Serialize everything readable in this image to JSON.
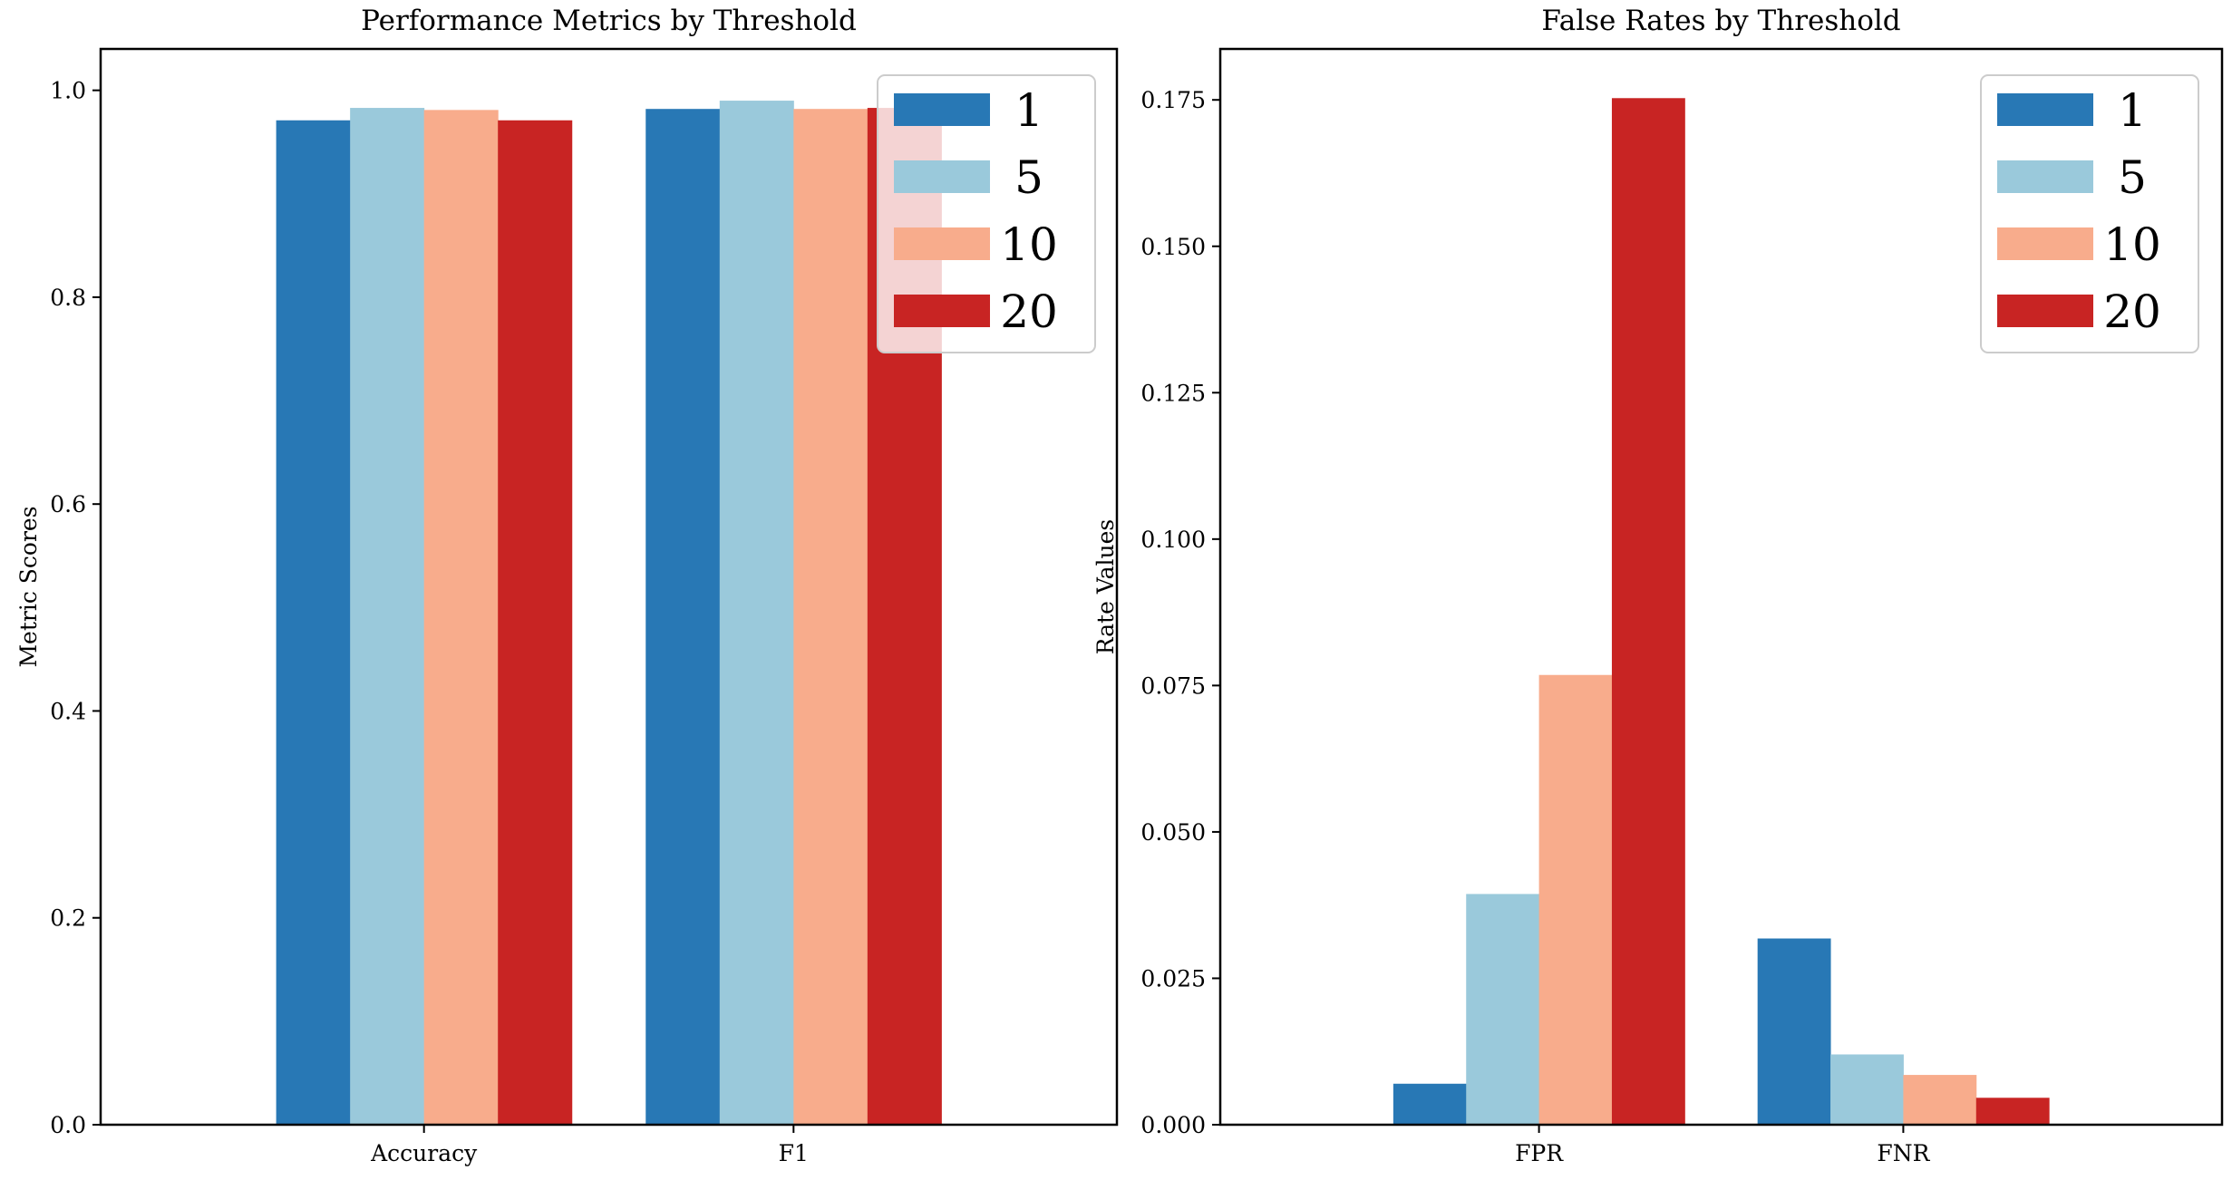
{
  "chart_data": [
    {
      "type": "bar",
      "title": "Performance Metrics by Threshold",
      "xlabel": "",
      "ylabel": "Metric Scores",
      "categories": [
        "Accuracy",
        "F1"
      ],
      "ylim": [
        0,
        1.04
      ],
      "yticks": [
        0.0,
        0.2,
        0.4,
        0.6,
        0.8,
        1.0
      ],
      "ytick_labels": [
        "0.0",
        "0.2",
        "0.4",
        "0.6",
        "0.8",
        "1.0"
      ],
      "legend_position": "top-right",
      "series": [
        {
          "name": "1",
          "color": "#2878b5",
          "values": [
            0.971,
            0.982
          ]
        },
        {
          "name": "5",
          "color": "#9ac9db",
          "values": [
            0.983,
            0.99
          ]
        },
        {
          "name": "10",
          "color": "#f8ac8c",
          "values": [
            0.981,
            0.982
          ]
        },
        {
          "name": "20",
          "color": "#c82423",
          "values": [
            0.971,
            0.983
          ]
        }
      ]
    },
    {
      "type": "bar",
      "title": "False Rates by Threshold",
      "xlabel": "",
      "ylabel": "Rate Values",
      "categories": [
        "FPR",
        "FNR"
      ],
      "ylim": [
        0,
        0.1837
      ],
      "yticks": [
        0.0,
        0.025,
        0.05,
        0.075,
        0.1,
        0.125,
        0.15,
        0.175
      ],
      "ytick_labels": [
        "0.000",
        "0.025",
        "0.050",
        "0.075",
        "0.100",
        "0.125",
        "0.150",
        "0.175"
      ],
      "legend_position": "top-right",
      "series": [
        {
          "name": "1",
          "color": "#2878b5",
          "values": [
            0.007,
            0.0318
          ]
        },
        {
          "name": "5",
          "color": "#9ac9db",
          "values": [
            0.0394,
            0.012
          ]
        },
        {
          "name": "10",
          "color": "#f8ac8c",
          "values": [
            0.0768,
            0.0085
          ]
        },
        {
          "name": "20",
          "color": "#c82423",
          "values": [
            0.1753,
            0.0046
          ]
        }
      ]
    }
  ]
}
